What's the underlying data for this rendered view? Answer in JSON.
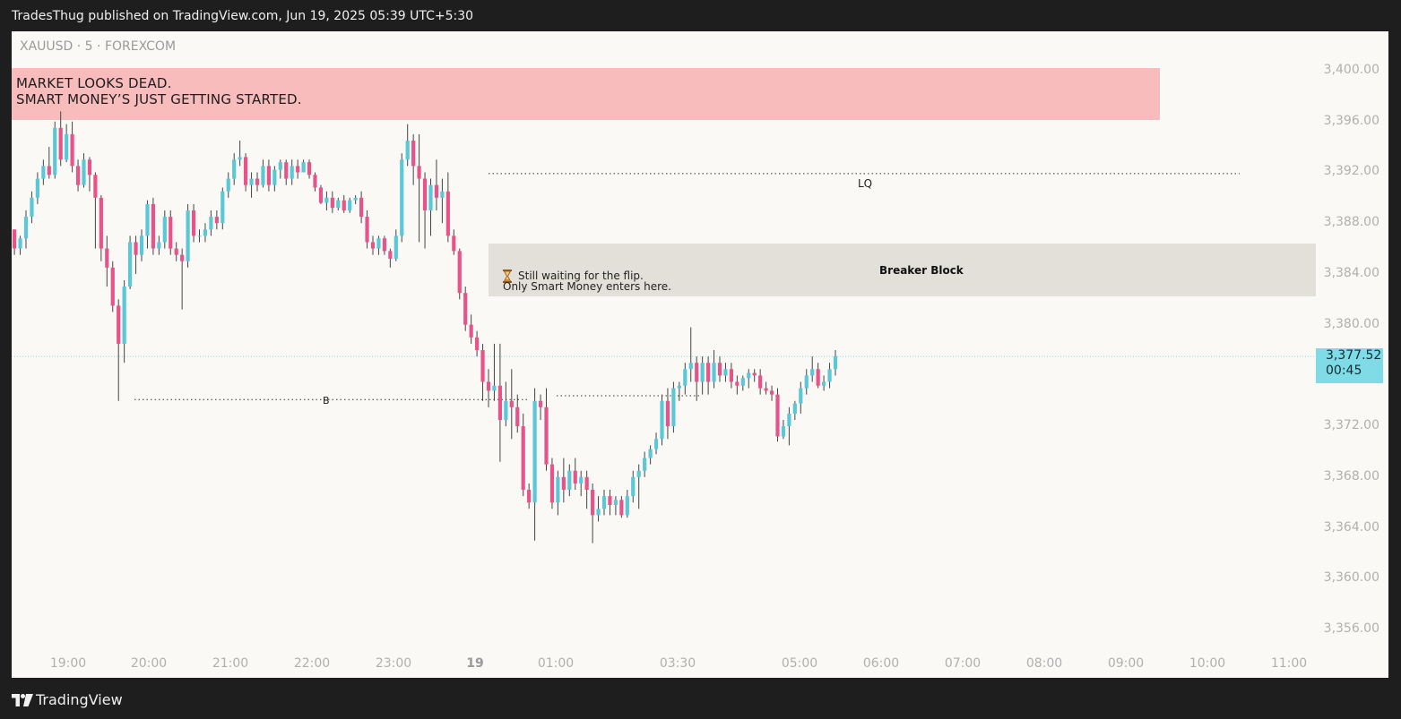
{
  "header": {
    "published": "TradesThug published on TradingView.com, Jun 19, 2025 05:39 UTC+5:30"
  },
  "symbol_line": "XAUUSD · 5 · FOREXCOM",
  "banner": {
    "line1": "MARKET LOOKS DEAD.",
    "line2": "SMART MONEY’S JUST GETTING STARTED.",
    "color": "#f9bcbd"
  },
  "annotations": {
    "breaker_label": "Breaker Block",
    "note_line1": "Still waiting for the flip.",
    "note_line2": "Only Smart Money enters here.",
    "lq_label": "LQ",
    "b_label": "B"
  },
  "last_price": {
    "price": "3,377.52",
    "countdown": "00:45",
    "color": "#7fdce6"
  },
  "footer": {
    "brand": "TradingView",
    "logo_icon": "tradingview-logo-icon"
  },
  "colors": {
    "up": "#5bc8d8",
    "down": "#e8538a",
    "wick": "#444444"
  },
  "chart_data": {
    "type": "candlestick",
    "symbol": "XAUUSD",
    "interval": "5",
    "exchange": "FOREXCOM",
    "ylim": [
      3354,
      3402
    ],
    "y_ticks": [
      "3,400.00",
      "3,396.00",
      "3,392.00",
      "3,388.00",
      "3,384.00",
      "3,380.00",
      "3,376.00",
      "3,372.00",
      "3,368.00",
      "3,364.00",
      "3,360.00",
      "3,356.00"
    ],
    "x_ticks": [
      "19:00",
      "20:00",
      "21:00",
      "22:00",
      "23:00",
      "19",
      "01:00",
      "03:30",
      "05:00",
      "06:00",
      "07:00",
      "08:00",
      "09:00",
      "10:00",
      "11:00"
    ],
    "zones": {
      "banner_zone": [
        3395.9,
        3400.1
      ],
      "breaker_block": [
        3382.2,
        3386.4
      ]
    },
    "levels": {
      "LQ": 3391.9,
      "B": 3374.1,
      "current": 3377.5
    },
    "candles": [
      {
        "o": 3387.5,
        "h": 3387.5,
        "l": 3385.5,
        "c": 3386.0
      },
      {
        "o": 3386.0,
        "h": 3387.0,
        "l": 3385.5,
        "c": 3386.8
      },
      {
        "o": 3386.8,
        "h": 3389.0,
        "l": 3386.0,
        "c": 3388.5
      },
      {
        "o": 3388.5,
        "h": 3390.5,
        "l": 3388.0,
        "c": 3390.0
      },
      {
        "o": 3390.0,
        "h": 3392.0,
        "l": 3389.5,
        "c": 3391.5
      },
      {
        "o": 3391.5,
        "h": 3393.0,
        "l": 3391.0,
        "c": 3392.5
      },
      {
        "o": 3392.5,
        "h": 3394.0,
        "l": 3391.5,
        "c": 3391.8
      },
      {
        "o": 3391.8,
        "h": 3396.0,
        "l": 3391.5,
        "c": 3395.5
      },
      {
        "o": 3395.5,
        "h": 3396.8,
        "l": 3392.5,
        "c": 3393.0
      },
      {
        "o": 3393.0,
        "h": 3395.8,
        "l": 3392.8,
        "c": 3395.0
      },
      {
        "o": 3395.0,
        "h": 3396.0,
        "l": 3392.0,
        "c": 3392.5
      },
      {
        "o": 3392.5,
        "h": 3393.0,
        "l": 3390.5,
        "c": 3391.0
      },
      {
        "o": 3391.0,
        "h": 3393.5,
        "l": 3390.8,
        "c": 3393.0
      },
      {
        "o": 3393.0,
        "h": 3393.2,
        "l": 3390.5,
        "c": 3391.8
      },
      {
        "o": 3391.8,
        "h": 3392.0,
        "l": 3386.0,
        "c": 3390.0
      },
      {
        "o": 3390.0,
        "h": 3390.2,
        "l": 3385.0,
        "c": 3386.0
      },
      {
        "o": 3386.0,
        "h": 3387.0,
        "l": 3383.0,
        "c": 3384.5
      },
      {
        "o": 3384.5,
        "h": 3385.0,
        "l": 3381.0,
        "c": 3381.5
      },
      {
        "o": 3381.5,
        "h": 3382.0,
        "l": 3374.0,
        "c": 3378.5
      },
      {
        "o": 3378.5,
        "h": 3383.5,
        "l": 3377.0,
        "c": 3383.0
      },
      {
        "o": 3383.0,
        "h": 3387.0,
        "l": 3382.8,
        "c": 3386.5
      },
      {
        "o": 3386.5,
        "h": 3387.0,
        "l": 3384.0,
        "c": 3385.5
      },
      {
        "o": 3385.5,
        "h": 3387.5,
        "l": 3385.0,
        "c": 3387.0
      },
      {
        "o": 3387.0,
        "h": 3389.8,
        "l": 3386.0,
        "c": 3389.5
      },
      {
        "o": 3389.5,
        "h": 3390.0,
        "l": 3385.5,
        "c": 3386.0
      },
      {
        "o": 3386.0,
        "h": 3387.0,
        "l": 3385.5,
        "c": 3386.5
      },
      {
        "o": 3386.5,
        "h": 3389.0,
        "l": 3386.0,
        "c": 3388.5
      },
      {
        "o": 3388.5,
        "h": 3389.0,
        "l": 3385.5,
        "c": 3386.0
      },
      {
        "o": 3386.0,
        "h": 3386.5,
        "l": 3385.0,
        "c": 3385.5
      },
      {
        "o": 3385.5,
        "h": 3386.0,
        "l": 3381.2,
        "c": 3385.0
      },
      {
        "o": 3385.0,
        "h": 3389.5,
        "l": 3384.5,
        "c": 3389.0
      },
      {
        "o": 3389.0,
        "h": 3389.5,
        "l": 3386.5,
        "c": 3387.0
      },
      {
        "o": 3387.0,
        "h": 3387.5,
        "l": 3386.5,
        "c": 3387.0
      },
      {
        "o": 3387.0,
        "h": 3388.0,
        "l": 3386.5,
        "c": 3387.5
      },
      {
        "o": 3387.5,
        "h": 3389.0,
        "l": 3387.0,
        "c": 3388.5
      },
      {
        "o": 3388.5,
        "h": 3389.0,
        "l": 3387.5,
        "c": 3388.0
      },
      {
        "o": 3388.0,
        "h": 3390.8,
        "l": 3387.5,
        "c": 3390.5
      },
      {
        "o": 3390.5,
        "h": 3392.0,
        "l": 3390.0,
        "c": 3391.5
      },
      {
        "o": 3391.5,
        "h": 3393.5,
        "l": 3391.0,
        "c": 3393.0
      },
      {
        "o": 3393.0,
        "h": 3394.5,
        "l": 3392.5,
        "c": 3393.2
      },
      {
        "o": 3393.2,
        "h": 3393.5,
        "l": 3390.5,
        "c": 3391.0
      },
      {
        "o": 3391.0,
        "h": 3392.0,
        "l": 3390.0,
        "c": 3391.5
      },
      {
        "o": 3391.5,
        "h": 3392.0,
        "l": 3390.5,
        "c": 3391.0
      },
      {
        "o": 3391.0,
        "h": 3393.0,
        "l": 3390.8,
        "c": 3392.5
      },
      {
        "o": 3392.5,
        "h": 3393.0,
        "l": 3390.5,
        "c": 3391.0
      },
      {
        "o": 3391.0,
        "h": 3392.5,
        "l": 3390.5,
        "c": 3392.2
      },
      {
        "o": 3392.2,
        "h": 3393.0,
        "l": 3391.5,
        "c": 3392.8
      },
      {
        "o": 3392.8,
        "h": 3393.0,
        "l": 3391.0,
        "c": 3391.5
      },
      {
        "o": 3391.5,
        "h": 3393.0,
        "l": 3391.0,
        "c": 3392.5
      },
      {
        "o": 3392.5,
        "h": 3393.0,
        "l": 3391.5,
        "c": 3392.0
      },
      {
        "o": 3392.0,
        "h": 3393.0,
        "l": 3392.0,
        "c": 3392.8
      },
      {
        "o": 3392.8,
        "h": 3393.0,
        "l": 3391.5,
        "c": 3391.8
      },
      {
        "o": 3391.8,
        "h": 3392.0,
        "l": 3390.5,
        "c": 3390.8
      },
      {
        "o": 3390.8,
        "h": 3391.0,
        "l": 3389.5,
        "c": 3389.6
      },
      {
        "o": 3389.6,
        "h": 3390.5,
        "l": 3389.0,
        "c": 3390.0
      },
      {
        "o": 3390.0,
        "h": 3390.5,
        "l": 3388.8,
        "c": 3389.2
      },
      {
        "o": 3389.2,
        "h": 3390.0,
        "l": 3389.0,
        "c": 3389.8
      },
      {
        "o": 3389.8,
        "h": 3390.2,
        "l": 3388.8,
        "c": 3389.0
      },
      {
        "o": 3389.0,
        "h": 3390.0,
        "l": 3388.8,
        "c": 3389.8
      },
      {
        "o": 3389.8,
        "h": 3390.2,
        "l": 3389.5,
        "c": 3390.0
      },
      {
        "o": 3390.0,
        "h": 3390.5,
        "l": 3388.0,
        "c": 3388.5
      },
      {
        "o": 3388.5,
        "h": 3389.0,
        "l": 3386.0,
        "c": 3386.5
      },
      {
        "o": 3386.5,
        "h": 3387.0,
        "l": 3385.5,
        "c": 3386.0
      },
      {
        "o": 3386.0,
        "h": 3387.0,
        "l": 3385.5,
        "c": 3386.8
      },
      {
        "o": 3386.8,
        "h": 3387.0,
        "l": 3385.5,
        "c": 3385.8
      },
      {
        "o": 3385.8,
        "h": 3386.0,
        "l": 3384.5,
        "c": 3385.2
      },
      {
        "o": 3385.2,
        "h": 3387.5,
        "l": 3385.0,
        "c": 3387.0
      },
      {
        "o": 3387.0,
        "h": 3393.5,
        "l": 3386.5,
        "c": 3393.0
      },
      {
        "o": 3393.0,
        "h": 3395.8,
        "l": 3392.5,
        "c": 3394.5
      },
      {
        "o": 3394.5,
        "h": 3395.0,
        "l": 3391.0,
        "c": 3392.5
      },
      {
        "o": 3392.5,
        "h": 3395.0,
        "l": 3386.5,
        "c": 3391.5
      },
      {
        "o": 3391.5,
        "h": 3392.0,
        "l": 3386.0,
        "c": 3389.0
      },
      {
        "o": 3389.0,
        "h": 3391.5,
        "l": 3387.0,
        "c": 3391.0
      },
      {
        "o": 3391.0,
        "h": 3393.0,
        "l": 3389.0,
        "c": 3390.0
      },
      {
        "o": 3390.0,
        "h": 3391.5,
        "l": 3388.0,
        "c": 3390.5
      },
      {
        "o": 3390.5,
        "h": 3392.0,
        "l": 3386.5,
        "c": 3387.0
      },
      {
        "o": 3387.0,
        "h": 3387.5,
        "l": 3385.5,
        "c": 3385.8
      },
      {
        "o": 3385.8,
        "h": 3386.0,
        "l": 3382.0,
        "c": 3382.5
      },
      {
        "o": 3382.5,
        "h": 3383.0,
        "l": 3379.5,
        "c": 3380.0
      },
      {
        "o": 3380.0,
        "h": 3380.8,
        "l": 3378.5,
        "c": 3379.0
      },
      {
        "o": 3379.0,
        "h": 3379.5,
        "l": 3377.5,
        "c": 3378.0
      },
      {
        "o": 3378.0,
        "h": 3378.5,
        "l": 3374.0,
        "c": 3375.5
      },
      {
        "o": 3375.5,
        "h": 3376.5,
        "l": 3373.5,
        "c": 3374.8
      },
      {
        "o": 3374.8,
        "h": 3378.5,
        "l": 3374.0,
        "c": 3375.2
      },
      {
        "o": 3375.2,
        "h": 3378.5,
        "l": 3369.2,
        "c": 3372.5
      },
      {
        "o": 3372.5,
        "h": 3375.5,
        "l": 3372.0,
        "c": 3374.0
      },
      {
        "o": 3374.0,
        "h": 3376.5,
        "l": 3371.0,
        "c": 3373.5
      },
      {
        "o": 3373.5,
        "h": 3374.5,
        "l": 3371.5,
        "c": 3372.0
      },
      {
        "o": 3372.0,
        "h": 3373.0,
        "l": 3366.5,
        "c": 3367.0
      },
      {
        "o": 3367.0,
        "h": 3367.5,
        "l": 3365.5,
        "c": 3366.0
      },
      {
        "o": 3366.0,
        "h": 3375.0,
        "l": 3363.0,
        "c": 3374.0
      },
      {
        "o": 3374.0,
        "h": 3374.5,
        "l": 3372.5,
        "c": 3373.5
      },
      {
        "o": 3373.5,
        "h": 3375.0,
        "l": 3368.5,
        "c": 3369.0
      },
      {
        "o": 3369.0,
        "h": 3369.5,
        "l": 3365.5,
        "c": 3366.0
      },
      {
        "o": 3366.0,
        "h": 3368.5,
        "l": 3365.0,
        "c": 3368.0
      },
      {
        "o": 3368.0,
        "h": 3369.5,
        "l": 3366.0,
        "c": 3367.0
      },
      {
        "o": 3367.0,
        "h": 3369.0,
        "l": 3366.5,
        "c": 3368.5
      },
      {
        "o": 3368.5,
        "h": 3369.5,
        "l": 3367.0,
        "c": 3367.5
      },
      {
        "o": 3367.5,
        "h": 3368.5,
        "l": 3366.5,
        "c": 3368.0
      },
      {
        "o": 3368.0,
        "h": 3368.5,
        "l": 3365.5,
        "c": 3367.0
      },
      {
        "o": 3367.0,
        "h": 3367.5,
        "l": 3362.8,
        "c": 3365.0
      },
      {
        "o": 3365.0,
        "h": 3366.5,
        "l": 3364.5,
        "c": 3365.5
      },
      {
        "o": 3365.5,
        "h": 3367.0,
        "l": 3365.0,
        "c": 3366.5
      },
      {
        "o": 3366.5,
        "h": 3367.0,
        "l": 3365.0,
        "c": 3365.8
      },
      {
        "o": 3365.8,
        "h": 3366.5,
        "l": 3365.0,
        "c": 3366.2
      },
      {
        "o": 3366.2,
        "h": 3366.5,
        "l": 3364.8,
        "c": 3365.0
      },
      {
        "o": 3365.0,
        "h": 3367.0,
        "l": 3364.8,
        "c": 3366.5
      },
      {
        "o": 3366.5,
        "h": 3368.5,
        "l": 3366.0,
        "c": 3368.0
      },
      {
        "o": 3368.0,
        "h": 3369.0,
        "l": 3365.5,
        "c": 3368.5
      },
      {
        "o": 3368.5,
        "h": 3370.0,
        "l": 3368.0,
        "c": 3369.5
      },
      {
        "o": 3369.5,
        "h": 3370.5,
        "l": 3369.0,
        "c": 3370.2
      },
      {
        "o": 3370.2,
        "h": 3371.5,
        "l": 3369.8,
        "c": 3371.0
      },
      {
        "o": 3371.0,
        "h": 3374.5,
        "l": 3370.5,
        "c": 3374.0
      },
      {
        "o": 3374.0,
        "h": 3375.0,
        "l": 3371.0,
        "c": 3372.0
      },
      {
        "o": 3372.0,
        "h": 3375.5,
        "l": 3371.5,
        "c": 3375.0
      },
      {
        "o": 3375.0,
        "h": 3375.5,
        "l": 3374.0,
        "c": 3375.2
      },
      {
        "o": 3375.2,
        "h": 3377.0,
        "l": 3374.5,
        "c": 3376.5
      },
      {
        "o": 3376.5,
        "h": 3379.8,
        "l": 3375.5,
        "c": 3377.0
      },
      {
        "o": 3377.0,
        "h": 3377.5,
        "l": 3374.0,
        "c": 3375.5
      },
      {
        "o": 3375.5,
        "h": 3377.5,
        "l": 3374.5,
        "c": 3377.0
      },
      {
        "o": 3377.0,
        "h": 3377.5,
        "l": 3374.5,
        "c": 3375.5
      },
      {
        "o": 3375.5,
        "h": 3378.0,
        "l": 3375.0,
        "c": 3377.0
      },
      {
        "o": 3377.0,
        "h": 3377.5,
        "l": 3375.5,
        "c": 3376.0
      },
      {
        "o": 3376.0,
        "h": 3377.0,
        "l": 3375.5,
        "c": 3376.5
      },
      {
        "o": 3376.5,
        "h": 3377.0,
        "l": 3375.0,
        "c": 3375.5
      },
      {
        "o": 3375.5,
        "h": 3376.0,
        "l": 3374.5,
        "c": 3375.2
      },
      {
        "o": 3375.2,
        "h": 3376.0,
        "l": 3374.8,
        "c": 3375.8
      },
      {
        "o": 3375.8,
        "h": 3376.5,
        "l": 3375.0,
        "c": 3376.2
      },
      {
        "o": 3376.2,
        "h": 3376.5,
        "l": 3375.5,
        "c": 3376.0
      },
      {
        "o": 3376.0,
        "h": 3376.5,
        "l": 3374.5,
        "c": 3375.0
      },
      {
        "o": 3375.0,
        "h": 3375.5,
        "l": 3374.5,
        "c": 3374.8
      },
      {
        "o": 3374.8,
        "h": 3375.2,
        "l": 3374.0,
        "c": 3374.5
      },
      {
        "o": 3374.5,
        "h": 3375.0,
        "l": 3370.8,
        "c": 3371.2
      },
      {
        "o": 3371.2,
        "h": 3372.5,
        "l": 3371.0,
        "c": 3372.0
      },
      {
        "o": 3372.0,
        "h": 3373.5,
        "l": 3370.5,
        "c": 3373.0
      },
      {
        "o": 3373.0,
        "h": 3374.0,
        "l": 3372.5,
        "c": 3373.8
      },
      {
        "o": 3373.8,
        "h": 3375.5,
        "l": 3373.0,
        "c": 3375.0
      },
      {
        "o": 3375.0,
        "h": 3376.5,
        "l": 3374.5,
        "c": 3376.0
      },
      {
        "o": 3376.0,
        "h": 3377.5,
        "l": 3375.5,
        "c": 3376.5
      },
      {
        "o": 3376.5,
        "h": 3377.0,
        "l": 3375.0,
        "c": 3375.2
      },
      {
        "o": 3375.2,
        "h": 3376.0,
        "l": 3374.8,
        "c": 3375.5
      },
      {
        "o": 3375.5,
        "h": 3377.0,
        "l": 3375.0,
        "c": 3376.5
      },
      {
        "o": 3376.5,
        "h": 3378.0,
        "l": 3376.0,
        "c": 3377.52
      }
    ]
  }
}
